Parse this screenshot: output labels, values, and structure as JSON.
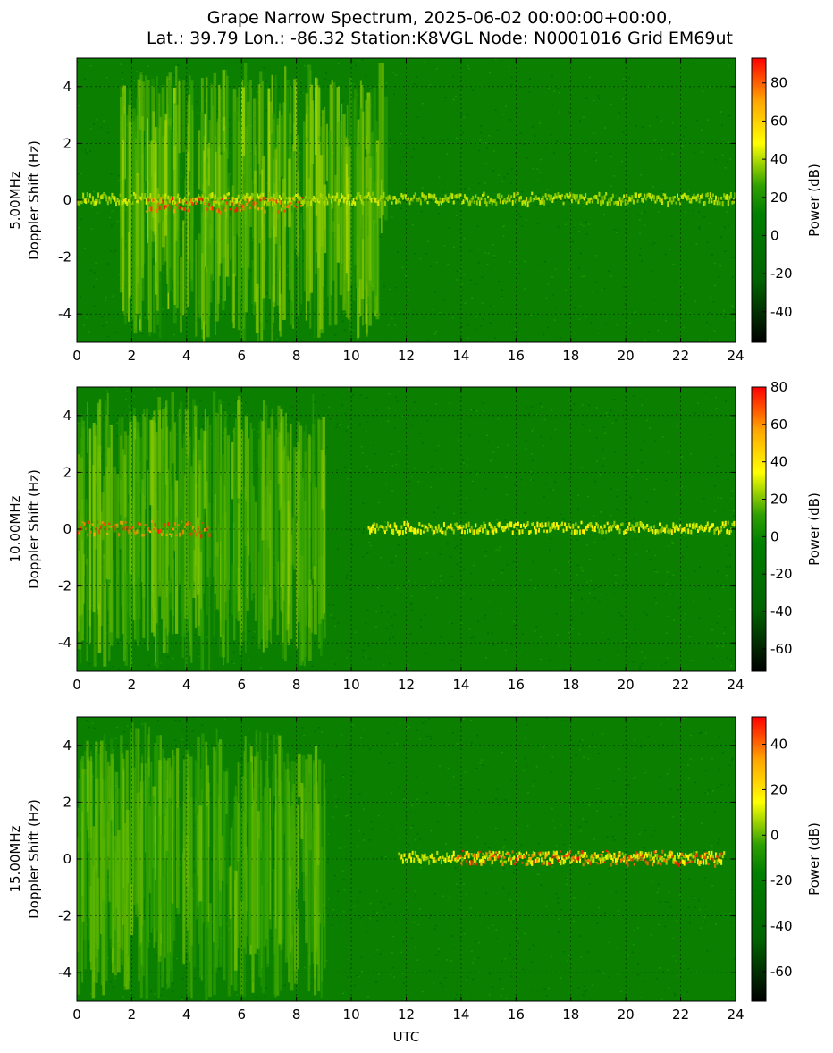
{
  "title_lines": [
    "Grape Narrow Spectrum, 2025-06-02 00:00:00+00:00,",
    "Lat.: 39.79 Lon.: -86.32 Station:K8VGL Node: N0001016 Grid EM69ut"
  ],
  "colormap": [
    "#000000",
    "#006400",
    "#008000",
    "#2ea000",
    "#ffff00",
    "#ffa500",
    "#ff0000"
  ],
  "chart_data": [
    {
      "type": "heatmap",
      "frequency_label": "5.00MHz",
      "ylabel": "Doppler Shift (Hz)",
      "xlabel": "",
      "xlim": [
        0,
        24
      ],
      "ylim": [
        -5,
        5
      ],
      "x_ticks": [
        0,
        2,
        4,
        6,
        8,
        10,
        12,
        14,
        16,
        18,
        20,
        22,
        24
      ],
      "y_ticks": [
        4,
        2,
        0,
        -2,
        -4
      ],
      "grid": true,
      "colorbar": {
        "label": "Power (dB)",
        "range": [
          -56,
          93
        ],
        "ticks": [
          80,
          60,
          40,
          20,
          0,
          -20,
          -40
        ]
      },
      "features": [
        {
          "name": "broadband_activity",
          "start": 1.5,
          "end": 11.2,
          "intensity": 0.55
        },
        {
          "name": "carrier",
          "start": 0,
          "end": 24,
          "doppler": 0.0,
          "intensity": 0.42
        },
        {
          "name": "strong_carrier",
          "start": 2.5,
          "end": 8.2,
          "doppler": -0.2,
          "intensity": 0.95
        }
      ]
    },
    {
      "type": "heatmap",
      "frequency_label": "10.00MHz",
      "ylabel": "Doppler Shift (Hz)",
      "xlabel": "",
      "xlim": [
        0,
        24
      ],
      "ylim": [
        -5,
        5
      ],
      "x_ticks": [
        0,
        2,
        4,
        6,
        8,
        10,
        12,
        14,
        16,
        18,
        20,
        22,
        24
      ],
      "y_ticks": [
        4,
        2,
        0,
        -2,
        -4
      ],
      "grid": true,
      "colorbar": {
        "label": "Power (dB)",
        "range": [
          -72,
          80
        ],
        "ticks": [
          80,
          60,
          40,
          20,
          0,
          -20,
          -40,
          -60
        ]
      },
      "features": [
        {
          "name": "broadband_activity",
          "start": 0,
          "end": 9.0,
          "intensity": 0.4
        },
        {
          "name": "carrier",
          "start": 10.6,
          "end": 24,
          "doppler": 0.0,
          "intensity": 0.8
        },
        {
          "name": "strong_carrier",
          "start": 0,
          "end": 4.8,
          "doppler": 0.0,
          "intensity": 0.9
        }
      ]
    },
    {
      "type": "heatmap",
      "frequency_label": "15.00MHz",
      "ylabel": "Doppler Shift (Hz)",
      "xlabel": "UTC",
      "xlim": [
        0,
        24
      ],
      "ylim": [
        -5,
        5
      ],
      "x_ticks": [
        0,
        2,
        4,
        6,
        8,
        10,
        12,
        14,
        16,
        18,
        20,
        22,
        24
      ],
      "y_ticks": [
        4,
        2,
        0,
        -2,
        -4
      ],
      "grid": true,
      "colorbar": {
        "label": "Power (dB)",
        "range": [
          -73,
          52
        ],
        "ticks": [
          40,
          20,
          0,
          -20,
          -40,
          -60
        ]
      },
      "features": [
        {
          "name": "broadband_activity",
          "start": 0,
          "end": 9.0,
          "intensity": 0.35
        },
        {
          "name": "carrier",
          "start": 11.7,
          "end": 23.6,
          "doppler": 0.0,
          "intensity": 0.85
        },
        {
          "name": "strong_carrier",
          "start": 13.8,
          "end": 23.5,
          "doppler": 0.0,
          "intensity": 0.95
        }
      ]
    }
  ]
}
